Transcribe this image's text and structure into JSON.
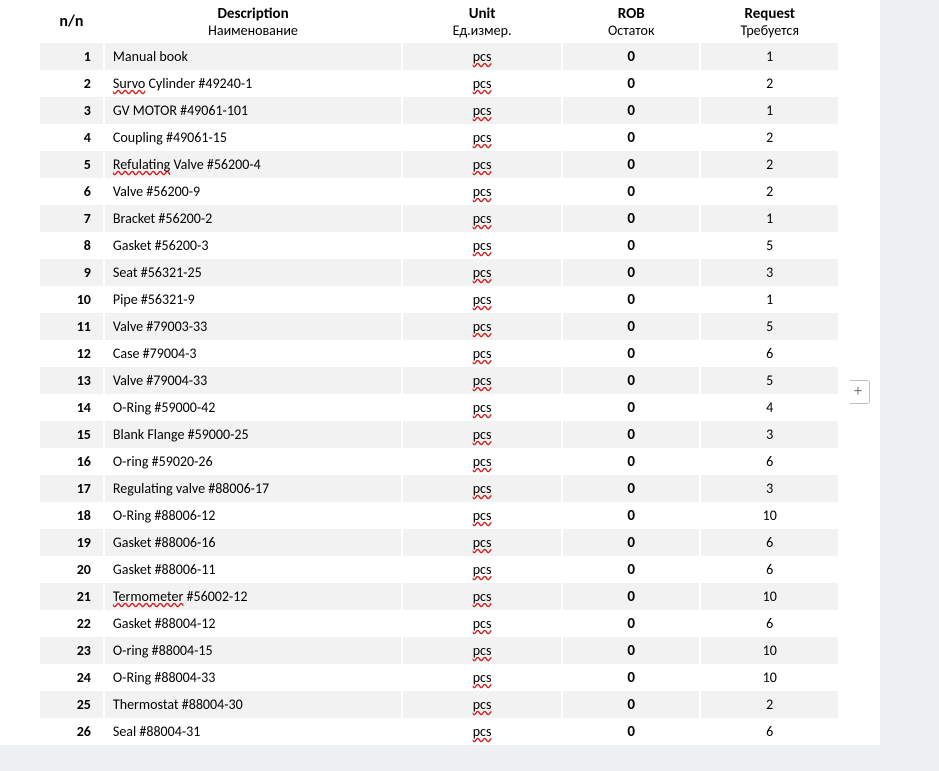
{
  "table": {
    "columns": [
      {
        "key": "num",
        "top": "n/n",
        "sub": ""
      },
      {
        "key": "desc",
        "top": "Description",
        "sub": "Наименование"
      },
      {
        "key": "unit",
        "top": "Unit",
        "sub": "Ед.измер."
      },
      {
        "key": "rob",
        "top": "ROB",
        "sub": "Остаток"
      },
      {
        "key": "req",
        "top": "Request",
        "sub": "Требуется"
      }
    ],
    "rows": [
      {
        "n": 1,
        "desc": "Manual book",
        "desc_spell": false,
        "unit": "pcs",
        "rob": 0,
        "req": 1
      },
      {
        "n": 2,
        "desc": "Survo Cylinder  #49240-1",
        "desc_spell": true,
        "unit": "pcs",
        "rob": 0,
        "req": 2
      },
      {
        "n": 3,
        "desc": "GV MOTOR  #49061-101",
        "desc_spell": false,
        "unit": "pcs",
        "rob": 0,
        "req": 1
      },
      {
        "n": 4,
        "desc": "Coupling #49061-15",
        "desc_spell": false,
        "unit": "pcs",
        "rob": 0,
        "req": 2
      },
      {
        "n": 5,
        "desc": "Refulating Valve #56200-4",
        "desc_spell": true,
        "unit": "pcs",
        "rob": 0,
        "req": 2
      },
      {
        "n": 6,
        "desc": "Valve #56200-9",
        "desc_spell": false,
        "unit": "pcs",
        "rob": 0,
        "req": 2
      },
      {
        "n": 7,
        "desc": "Bracket #56200-2",
        "desc_spell": false,
        "unit": "pcs",
        "rob": 0,
        "req": 1
      },
      {
        "n": 8,
        "desc": "Gasket #56200-3",
        "desc_spell": false,
        "unit": "pcs",
        "rob": 0,
        "req": 5
      },
      {
        "n": 9,
        "desc": "Seat #56321-25",
        "desc_spell": false,
        "unit": "pcs",
        "rob": 0,
        "req": 3
      },
      {
        "n": 10,
        "desc": "Pipe #56321-9",
        "desc_spell": false,
        "unit": "pcs",
        "rob": 0,
        "req": 1
      },
      {
        "n": 11,
        "desc": "Valve #79003-33",
        "desc_spell": false,
        "unit": "pcs",
        "rob": 0,
        "req": 5
      },
      {
        "n": 12,
        "desc": "Case #79004-3",
        "desc_spell": false,
        "unit": "pcs",
        "rob": 0,
        "req": 6
      },
      {
        "n": 13,
        "desc": "Valve #79004-33",
        "desc_spell": false,
        "unit": "pcs",
        "rob": 0,
        "req": 5
      },
      {
        "n": 14,
        "desc": "O-Ring #59000-42",
        "desc_spell": false,
        "unit": "pcs",
        "rob": 0,
        "req": 4
      },
      {
        "n": 15,
        "desc": "Blank Flange #59000-25",
        "desc_spell": false,
        "unit": "pcs",
        "rob": 0,
        "req": 3
      },
      {
        "n": 16,
        "desc": "O-ring #59020-26",
        "desc_spell": false,
        "unit": "pcs",
        "rob": 0,
        "req": 6
      },
      {
        "n": 17,
        "desc": "Regulating valve #88006-17",
        "desc_spell": false,
        "unit": "pcs",
        "rob": 0,
        "req": 3
      },
      {
        "n": 18,
        "desc": "O-Ring #88006-12",
        "desc_spell": false,
        "unit": "pcs",
        "rob": 0,
        "req": 10
      },
      {
        "n": 19,
        "desc": "Gasket #88006-16",
        "desc_spell": false,
        "unit": "pcs",
        "rob": 0,
        "req": 6
      },
      {
        "n": 20,
        "desc": "Gasket #88006-11",
        "desc_spell": false,
        "unit": "pcs",
        "rob": 0,
        "req": 6
      },
      {
        "n": 21,
        "desc": "Termometer #56002-12",
        "desc_spell": true,
        "unit": "pcs",
        "rob": 0,
        "req": 10
      },
      {
        "n": 22,
        "desc": "Gasket #88004-12",
        "desc_spell": false,
        "unit": "pcs",
        "rob": 0,
        "req": 6
      },
      {
        "n": 23,
        "desc": "O-ring #88004-15",
        "desc_spell": false,
        "unit": "pcs",
        "rob": 0,
        "req": 10
      },
      {
        "n": 24,
        "desc": "O-Ring #88004-33",
        "desc_spell": false,
        "unit": "pcs",
        "rob": 0,
        "req": 10
      },
      {
        "n": 25,
        "desc": "Thermostat #88004-30",
        "desc_spell": false,
        "unit": "pcs",
        "rob": 0,
        "req": 2
      },
      {
        "n": 26,
        "desc": "Seal #88004-31",
        "desc_spell": false,
        "unit": "pcs",
        "rob": 0,
        "req": 6
      }
    ],
    "unit_spell": true,
    "row_colors": {
      "odd": "#ffffff",
      "even": "#f2f2f2"
    },
    "header_fontsize": 15,
    "body_fontsize": 14,
    "background_color": "#ffffff",
    "page_background": "#eef0f2",
    "spell_color": "#d02020"
  },
  "side_button": {
    "label": "+"
  }
}
